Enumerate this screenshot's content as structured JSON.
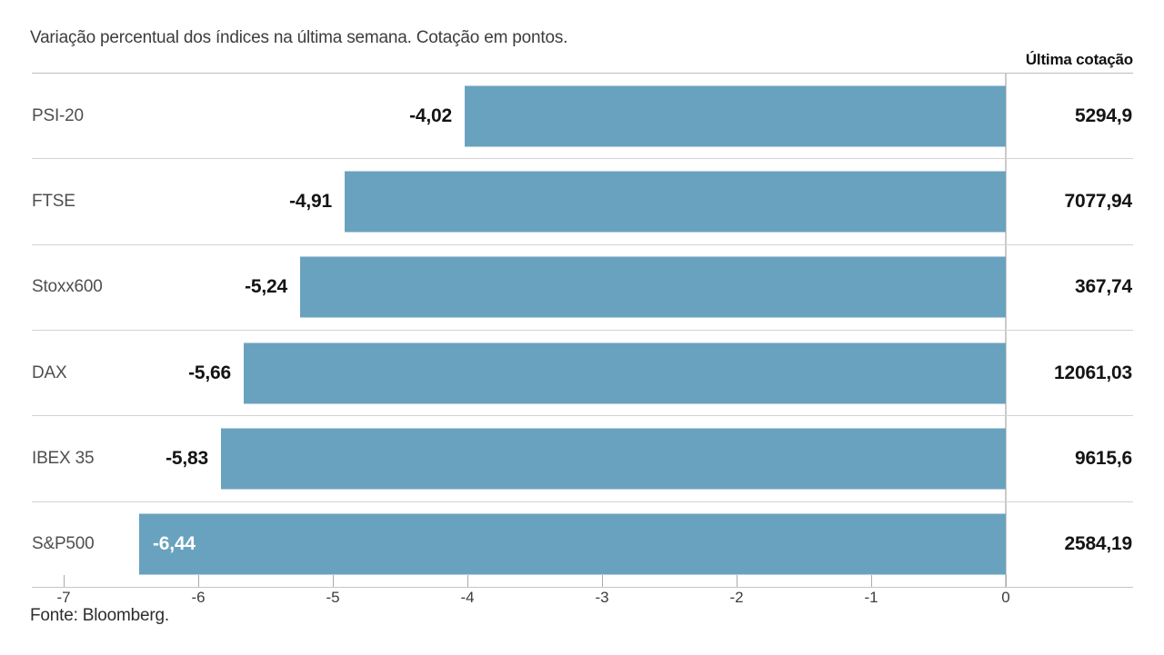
{
  "source": "Fonte: Bloomberg.",
  "colors": {
    "bar": "#69a2be",
    "separator": "#d3d3d3",
    "axis_line": "#c6c6c6",
    "zero_line": "#cbcbcb",
    "inside_bar_label": "#ffffff",
    "text_dark": "#141414",
    "text_gray": "#4f4f4f"
  },
  "chart_data": {
    "type": "bar",
    "orientation": "horizontal",
    "title": "Variação percentual dos índices na última semana. Cotação em pontos.",
    "value_column_header": "Última cotação",
    "xlabel": "",
    "ylabel": "",
    "xlim": [
      -7,
      0
    ],
    "grid": false,
    "legend": "none",
    "categories": [
      "PSI-20",
      "FTSE",
      "Stoxx600",
      "DAX",
      "IBEX 35",
      "S&P500"
    ],
    "values": [
      -4.02,
      -4.91,
      -5.24,
      -5.66,
      -5.83,
      -6.44
    ],
    "x_ticks": [
      {
        "value": -7,
        "label": "-7"
      },
      {
        "value": -6,
        "label": "-6"
      },
      {
        "value": -5,
        "label": "-5"
      },
      {
        "value": -4,
        "label": "-4"
      },
      {
        "value": -3,
        "label": "-3"
      },
      {
        "value": -2,
        "label": "-2"
      },
      {
        "value": -1,
        "label": "-1"
      },
      {
        "value": 0,
        "label": "0"
      }
    ],
    "rows": [
      {
        "category": "PSI-20",
        "value": -4.02,
        "value_label": "-4,02",
        "last_quote": "5294,9",
        "value_label_inside_bar": false
      },
      {
        "category": "FTSE",
        "value": -4.91,
        "value_label": "-4,91",
        "last_quote": "7077,94",
        "value_label_inside_bar": false
      },
      {
        "category": "Stoxx600",
        "value": -5.24,
        "value_label": "-5,24",
        "last_quote": "367,74",
        "value_label_inside_bar": false
      },
      {
        "category": "DAX",
        "value": -5.66,
        "value_label": "-5,66",
        "last_quote": "12061,03",
        "value_label_inside_bar": false
      },
      {
        "category": "IBEX 35",
        "value": -5.83,
        "value_label": "-5,83",
        "last_quote": "9615,6",
        "value_label_inside_bar": false
      },
      {
        "category": "S&P500",
        "value": -6.44,
        "value_label": "-6,44",
        "last_quote": "2584,19",
        "value_label_inside_bar": true
      }
    ]
  }
}
